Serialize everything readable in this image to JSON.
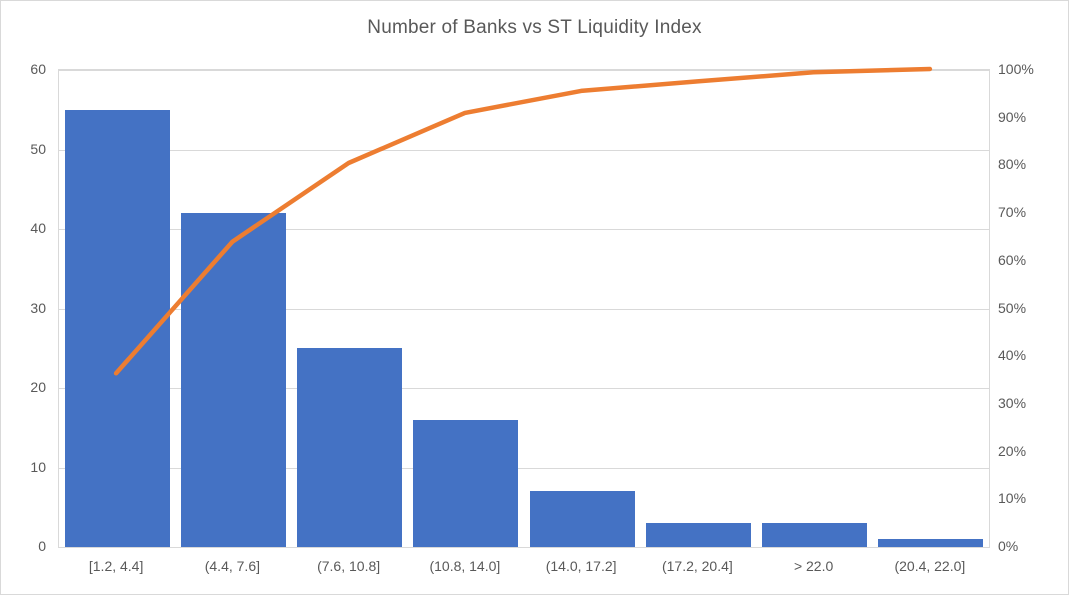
{
  "window": {
    "background": "#FFFFFF",
    "border_color": "#D9D9D9"
  },
  "chart_data": {
    "type": "bar+line (pareto)",
    "title": "Number of Banks vs ST Liquidity Index",
    "categories": [
      "[1.2, 4.4]",
      "(4.4, 7.6]",
      "(7.6, 10.8]",
      "(10.8, 14.0]",
      "(14.0, 17.2]",
      "(17.2, 20.4]",
      "> 22.0",
      "(20.4, 22.0]"
    ],
    "series": [
      {
        "name": "number-of-banks-bars",
        "type": "bar",
        "axis": "left",
        "color": "#4472C4",
        "values": [
          55,
          42,
          25,
          16,
          7,
          3,
          3,
          1
        ]
      },
      {
        "name": "cumulative-percent-line",
        "type": "line",
        "axis": "right",
        "color": "#ED7D31",
        "values_pct": [
          36.2,
          63.8,
          80.3,
          90.8,
          95.4,
          97.4,
          99.3,
          100.0
        ]
      }
    ],
    "left_axis": {
      "min": 0,
      "max": 60,
      "tick_step": 10,
      "tick_labels": [
        "0",
        "10",
        "20",
        "30",
        "40",
        "50",
        "60"
      ]
    },
    "right_axis": {
      "min": 0,
      "max": 100,
      "tick_step": 10,
      "tick_labels": [
        "0%",
        "10%",
        "20%",
        "30%",
        "40%",
        "50%",
        "60%",
        "70%",
        "80%",
        "90%",
        "100%"
      ]
    },
    "grid": {
      "horizontal": true,
      "vertical": false,
      "color": "#D9D9D9"
    },
    "legend": "none",
    "text_color": "#595959"
  }
}
